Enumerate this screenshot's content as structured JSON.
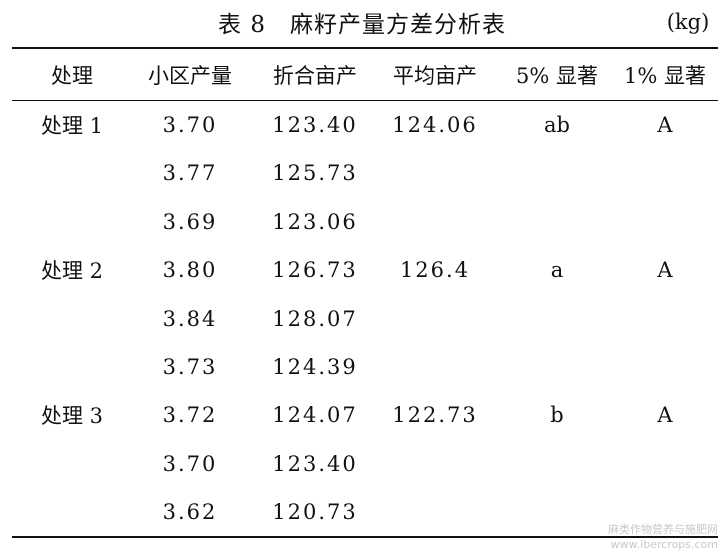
{
  "title": "表 8　麻籽产量方差分析表",
  "unit": "(kg)",
  "header": [
    "处理",
    "小区产量",
    "折合亩产",
    "平均亩产",
    "5% 显著",
    "1% 显著"
  ],
  "groups": [
    {
      "treatment": "处理 1",
      "mean": "124.06",
      "sig5": "ab",
      "sig1": "A",
      "plots": [
        [
          "3.70",
          "123.40"
        ],
        [
          "3.77",
          "125.73"
        ],
        [
          "3.69",
          "123.06"
        ]
      ]
    },
    {
      "treatment": "处理 2",
      "mean": "126.4",
      "sig5": "a",
      "sig1": "A",
      "plots": [
        [
          "3.80",
          "126.73"
        ],
        [
          "3.84",
          "128.07"
        ],
        [
          "3.73",
          "124.39"
        ]
      ]
    },
    {
      "treatment": "处理 3",
      "mean": "122.73",
      "sig5": "b",
      "sig1": "A",
      "plots": [
        [
          "3.72",
          "124.07"
        ],
        [
          "3.70",
          "123.40"
        ],
        [
          "3.62",
          "120.73"
        ]
      ]
    }
  ],
  "watermark": [
    "麻类作物营养与施肥网",
    "www.ibercrops.com"
  ]
}
